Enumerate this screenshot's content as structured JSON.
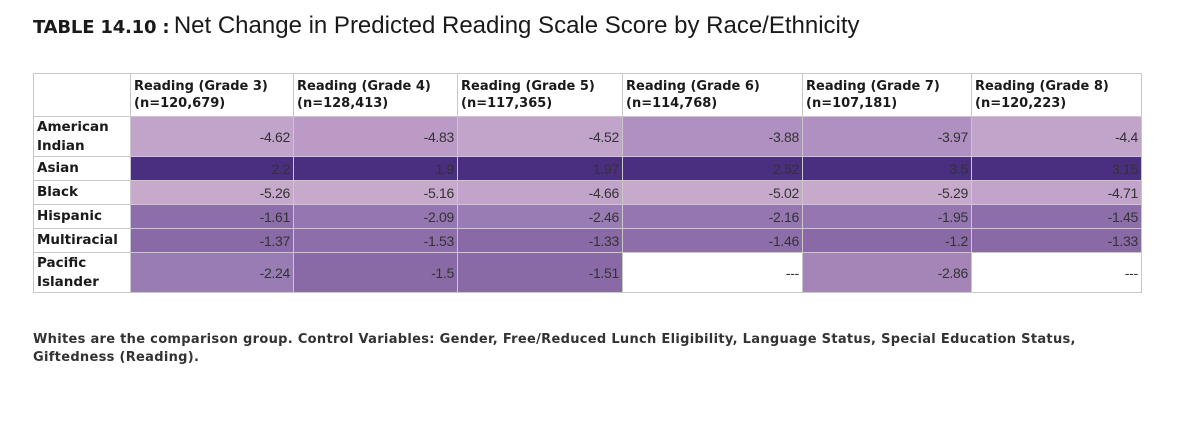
{
  "title": {
    "label": "TABLE 14.10 :",
    "text": "Net Change in Predicted Reading Scale Score by Race/Ethnicity"
  },
  "table": {
    "columns": [
      {
        "name": "Reading (Grade 3)",
        "n": "(n=120,679)"
      },
      {
        "name": "Reading (Grade 4)",
        "n": "(n=128,413)"
      },
      {
        "name": "Reading (Grade 5)",
        "n": "(n=117,365)"
      },
      {
        "name": "Reading (Grade 6)",
        "n": "(n=114,768)"
      },
      {
        "name": "Reading (Grade 7)",
        "n": "(n=107,181)"
      },
      {
        "name": "Reading (Grade 8)",
        "n": "(n=120,223)"
      }
    ],
    "rows": [
      {
        "group": "American Indian",
        "values": [
          "-4.62",
          "-4.83",
          "-4.52",
          "-3.88",
          "-3.97",
          "-4.4"
        ]
      },
      {
        "group": "Asian",
        "values": [
          "2.2",
          "1.9",
          "1.97",
          "2.52",
          "3.5",
          "3.15"
        ]
      },
      {
        "group": "Black",
        "values": [
          "-5.26",
          "-5.16",
          "-4.66",
          "-5.02",
          "-5.29",
          "-4.71"
        ]
      },
      {
        "group": "Hispanic",
        "values": [
          "-1.61",
          "-2.09",
          "-2.46",
          "-2.16",
          "-1.95",
          "-1.45"
        ]
      },
      {
        "group": "Multiracial",
        "values": [
          "-1.37",
          "-1.53",
          "-1.33",
          "-1.46",
          "-1.2",
          "-1.33"
        ]
      },
      {
        "group": "Pacific Islander",
        "values": [
          "-2.24",
          "-1.5",
          "-1.51",
          "---",
          "-2.86",
          "---"
        ]
      }
    ],
    "colors": {
      "row0": [
        "#c2a3ca",
        "#bb9bc6",
        "#c2a3ca",
        "#b090c0",
        "#b090c0",
        "#c2a3ca"
      ],
      "row1": [
        "#4a2e7f",
        "#4a2e7f",
        "#4a2e7f",
        "#4a2e7f",
        "#4a2e7f",
        "#4a2e7f"
      ],
      "row2": [
        "#c7a9cc",
        "#c7a9cc",
        "#c2a3ca",
        "#c7a9cc",
        "#c7a9cc",
        "#c2a3ca"
      ],
      "row3": [
        "#8e6eaa",
        "#9576b0",
        "#9a7cb4",
        "#9576b0",
        "#9576b0",
        "#8e6eaa"
      ],
      "row4": [
        "#8a6aa6",
        "#8e6eaa",
        "#8a6aa6",
        "#8e6eaa",
        "#8a6aa6",
        "#8a6aa6"
      ],
      "row5": [
        "#9a7cb4",
        "#8a6aa6",
        "#8a6aa6",
        "#ffffff",
        "#a585b8",
        "#ffffff"
      ]
    }
  },
  "footnote": "Whites are the comparison group. Control Variables: Gender, Free/Reduced Lunch Eligibility, Language Status, Special Education Status, Giftedness (Reading)."
}
